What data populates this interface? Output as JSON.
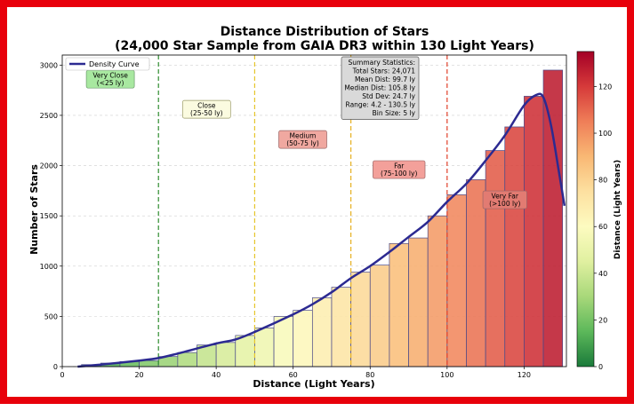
{
  "chart_data": {
    "type": "bar",
    "title": "Distance Distribution of Stars",
    "subtitle": "(24,000 Star Sample from GAIA DR3 within 130 Light Years)",
    "xlabel": "Distance (Light Years)",
    "ylabel": "Number of Stars",
    "xlim": [
      0,
      131
    ],
    "ylim": [
      0,
      3100
    ],
    "x_ticks": [
      0,
      20,
      40,
      60,
      80,
      100,
      120
    ],
    "y_ticks": [
      0,
      500,
      1000,
      1500,
      2000,
      2500,
      3000
    ],
    "grid": "horizontal dashed",
    "legend": "top-left",
    "bin_size": 5,
    "bins": [
      {
        "x0": 5,
        "x1": 10,
        "value": 20
      },
      {
        "x0": 10,
        "x1": 15,
        "value": 35
      },
      {
        "x0": 15,
        "x1": 20,
        "value": 50
      },
      {
        "x0": 20,
        "x1": 25,
        "value": 60
      },
      {
        "x0": 25,
        "x1": 30,
        "value": 100
      },
      {
        "x0": 30,
        "x1": 35,
        "value": 140
      },
      {
        "x0": 35,
        "x1": 40,
        "value": 215
      },
      {
        "x0": 40,
        "x1": 45,
        "value": 240
      },
      {
        "x0": 45,
        "x1": 50,
        "value": 310
      },
      {
        "x0": 50,
        "x1": 55,
        "value": 385
      },
      {
        "x0": 55,
        "x1": 60,
        "value": 500
      },
      {
        "x0": 60,
        "x1": 65,
        "value": 560
      },
      {
        "x0": 65,
        "x1": 70,
        "value": 685
      },
      {
        "x0": 70,
        "x1": 75,
        "value": 790
      },
      {
        "x0": 75,
        "x1": 80,
        "value": 940
      },
      {
        "x0": 80,
        "x1": 85,
        "value": 1010
      },
      {
        "x0": 85,
        "x1": 90,
        "value": 1225
      },
      {
        "x0": 90,
        "x1": 95,
        "value": 1280
      },
      {
        "x0": 95,
        "x1": 100,
        "value": 1500
      },
      {
        "x0": 100,
        "x1": 105,
        "value": 1710
      },
      {
        "x0": 105,
        "x1": 110,
        "value": 1860
      },
      {
        "x0": 110,
        "x1": 115,
        "value": 2150
      },
      {
        "x0": 115,
        "x1": 120,
        "value": 2385
      },
      {
        "x0": 120,
        "x1": 125,
        "value": 2690
      },
      {
        "x0": 125,
        "x1": 130,
        "value": 2950
      }
    ],
    "density_curve": {
      "name": "Density Curve",
      "color": "#2c2a91",
      "x": [
        4,
        10,
        20,
        25,
        30,
        40,
        45,
        50,
        60,
        65,
        70,
        75,
        80,
        85,
        90,
        95,
        100,
        105,
        110,
        115,
        120,
        123,
        125,
        127,
        129,
        130.5
      ],
      "y": [
        0,
        20,
        60,
        85,
        130,
        230,
        270,
        345,
        520,
        620,
        740,
        880,
        1000,
        1140,
        1290,
        1440,
        1640,
        1820,
        2050,
        2300,
        2600,
        2700,
        2680,
        2400,
        1950,
        1600
      ]
    },
    "threshold_lines": [
      {
        "x": 25,
        "color": "#2e8b2e"
      },
      {
        "x": 50,
        "color": "#e6c52a"
      },
      {
        "x": 75,
        "color": "#e6b020"
      },
      {
        "x": 100,
        "color": "#e0402a"
      }
    ],
    "region_labels": [
      {
        "line1": "Very Close",
        "line2": "(<25 ly)",
        "x": 12.5,
        "y": 2860,
        "fill": "#a8e8a0",
        "border": "#6a9a6a"
      },
      {
        "line1": "Close",
        "line2": "(25-50 ly)",
        "x": 37.5,
        "y": 2560,
        "fill": "#fbfbe0",
        "border": "#999966"
      },
      {
        "line1": "Medium",
        "line2": "(50-75 ly)",
        "x": 62.5,
        "y": 2260,
        "fill": "#f0a8a0",
        "border": "#996666"
      },
      {
        "line1": "Far",
        "line2": "(75-100 ly)",
        "x": 87.5,
        "y": 1960,
        "fill": "#f3a09a",
        "border": "#996666"
      },
      {
        "line1": "Very Far",
        "line2": "(>100 ly)",
        "x": 115,
        "y": 1660,
        "fill": "#e27b72",
        "border": "#996666"
      }
    ],
    "summary_stats": {
      "lines": [
        "Summary Statistics:",
        "Total Stars: 24,071",
        "Mean Dist: 99.7 ly",
        "Median Dist: 105.8 ly",
        "Std Dev: 24.7 ly",
        "Range: 4.2 - 130.5 ly",
        "Bin Size: 5 ly"
      ]
    },
    "colorbar": {
      "label": "Distance (Light Years)",
      "range": [
        0,
        135
      ],
      "ticks": [
        0,
        20,
        40,
        60,
        80,
        100,
        120
      ],
      "colormap": [
        "#1a7a3a",
        "#5cb85a",
        "#a8d87a",
        "#e0f0a0",
        "#fdfbc0",
        "#fde0a0",
        "#f9b874",
        "#ef7e58",
        "#d63a3a",
        "#a40026"
      ]
    }
  }
}
